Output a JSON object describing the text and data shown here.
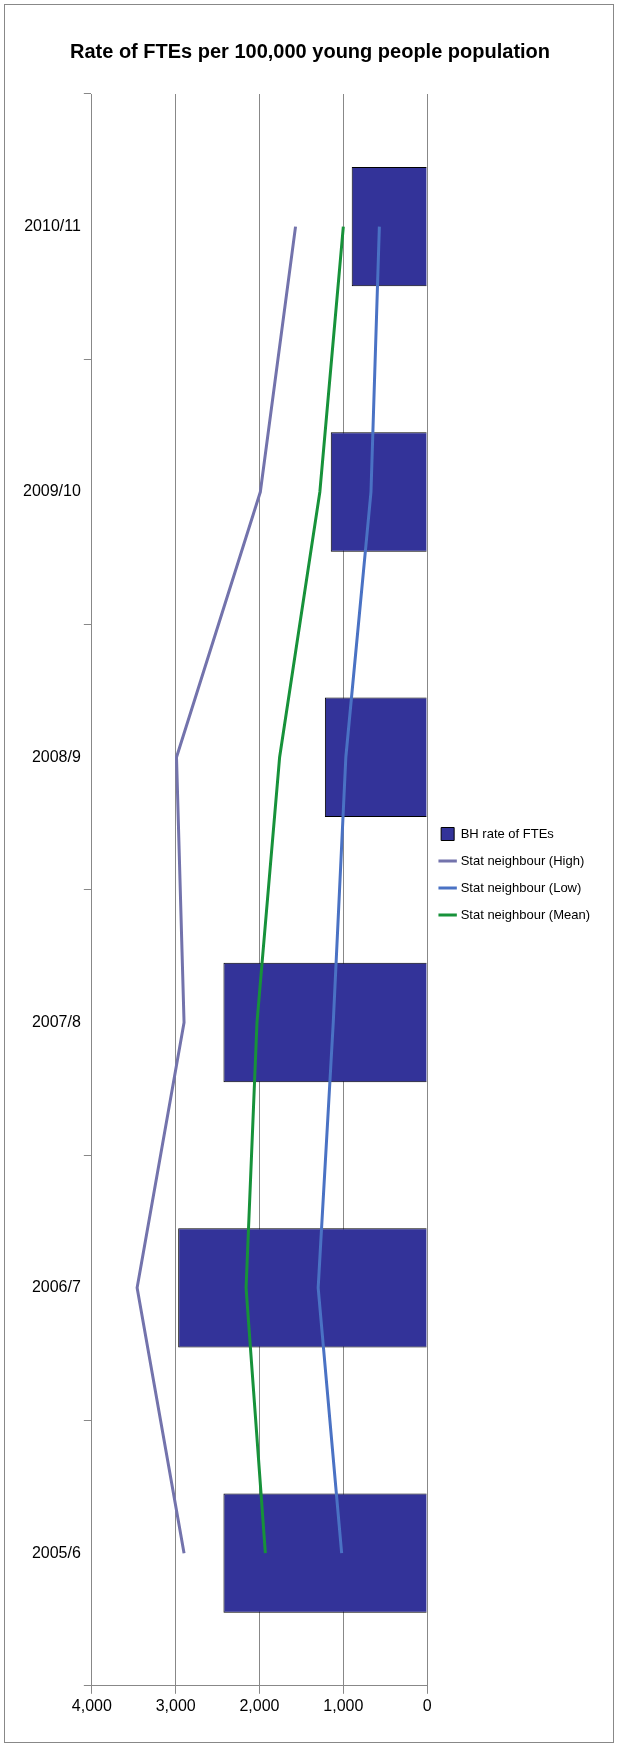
{
  "chart_data": {
    "type": "bar",
    "orientation": "horizontal",
    "title": "Rate of FTEs per 100,000 young people population",
    "categories": [
      "2010/11",
      "2009/10",
      "2008/9",
      "2007/8",
      "2006/7",
      "2005/6"
    ],
    "series": [
      {
        "name": "BH rate of FTEs",
        "color": "#333399",
        "values": [
          900,
          1150,
          1220,
          2430,
          2970,
          2430
        ]
      },
      {
        "name": "Stat neighbour (High)",
        "type": "line",
        "color": "#7373ac",
        "values": [
          1570,
          1990,
          2990,
          2900,
          3460,
          2900
        ]
      },
      {
        "name": "Stat neighbour (Low)",
        "type": "line",
        "color": "#4a72c4",
        "values": [
          570,
          670,
          970,
          1120,
          1300,
          1020
        ]
      },
      {
        "name": "Stat neighbour (Mean)",
        "type": "line",
        "color": "#17923a",
        "values": [
          1000,
          1280,
          1760,
          2030,
          2160,
          1930
        ]
      }
    ],
    "xlim": [
      4000,
      0
    ],
    "xticks": [
      {
        "value": 4000,
        "label": "4,000"
      },
      {
        "value": 3000,
        "label": "3,000"
      },
      {
        "value": 2000,
        "label": "2,000"
      },
      {
        "value": 1000,
        "label": "1,000"
      },
      {
        "value": 0,
        "label": "0"
      }
    ],
    "grid": "x",
    "legend": "right",
    "marker": "none"
  }
}
